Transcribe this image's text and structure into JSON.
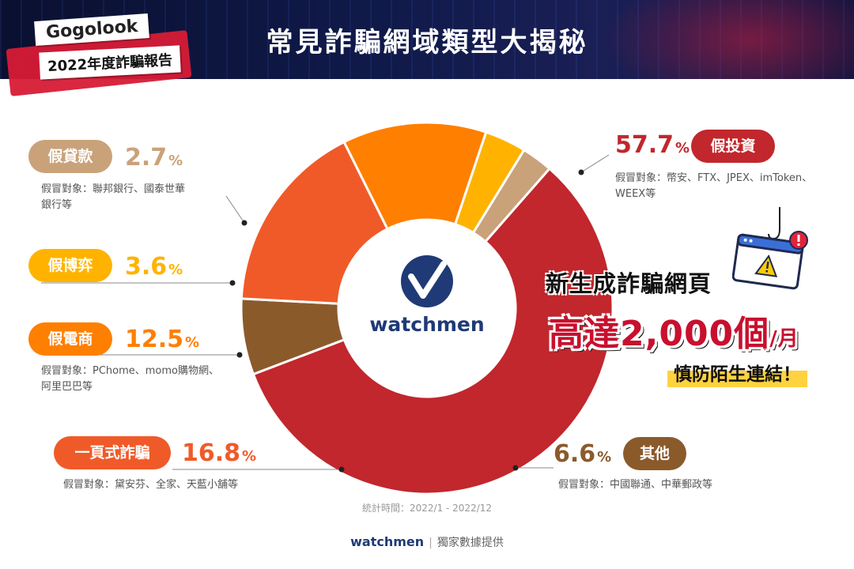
{
  "header": {
    "brand": "Gogolook",
    "report": "2022年度詐騙報告",
    "title": "常見詐騙網域類型大揭秘"
  },
  "chart_data": {
    "type": "pie",
    "style": "donut",
    "center_label": "watchmen",
    "slices": [
      {
        "key": "invest",
        "label": "假投資",
        "value": 57.7,
        "color": "#c1272d",
        "desc": "假冒對象：幣安、FTX、JPEX、imToken、WEEX等"
      },
      {
        "key": "other",
        "label": "其他",
        "value": 6.6,
        "color": "#8b5a2b",
        "desc": "假冒對象：中國聯通、中華郵政等"
      },
      {
        "key": "onepage",
        "label": "一頁式詐騙",
        "value": 16.8,
        "color": "#f05a28",
        "desc": "假冒對象：黛安芬、全家、天藍小舖等"
      },
      {
        "key": "ecommerce",
        "label": "假電商",
        "value": 12.5,
        "color": "#ff7f00",
        "desc": "假冒對象：PChome、momo購物網、阿里巴巴等"
      },
      {
        "key": "gamble",
        "label": "假博弈",
        "value": 3.6,
        "color": "#ffb300",
        "desc": ""
      },
      {
        "key": "loan",
        "label": "假貸款",
        "value": 2.7,
        "color": "#c9a27a",
        "desc": "假冒對象：聯邦銀行、國泰世華銀行等"
      }
    ]
  },
  "labels": {
    "invest": {
      "pill": "假投資",
      "pct": "57.7",
      "desc_1": "假冒對象：幣安、FTX、JPEX、imToken、",
      "desc_2": "WEEX等"
    },
    "other": {
      "pill": "其他",
      "pct": "6.6",
      "desc_1": "假冒對象：中國聯通、中華郵政等"
    },
    "onepage": {
      "pill": "一頁式詐騙",
      "pct": "16.8",
      "desc_1": "假冒對象：黛安芬、全家、天藍小舖等"
    },
    "ecommerce": {
      "pill": "假電商",
      "pct": "12.5",
      "desc_1": "假冒對象：PChome、momo購物網、",
      "desc_2": "阿里巴巴等"
    },
    "gamble": {
      "pill": "假博弈",
      "pct": "3.6"
    },
    "loan": {
      "pill": "假貸款",
      "pct": "2.7",
      "desc_1": "假冒對象：聯邦銀行、國泰世華",
      "desc_2": "銀行等"
    },
    "percent_sign": "%"
  },
  "promo": {
    "line1": "新生成詐騙網頁",
    "line2": "高達2,000個",
    "unit": "/月",
    "line3": "慎防陌生連結！"
  },
  "footnote": "統計時間：2022/1 - 2022/12",
  "footer": {
    "brand": "watchmen",
    "separator": "|",
    "text": "獨家數據提供"
  },
  "colors": {
    "header_bg": "#0b1440",
    "brand_red": "#d71b36",
    "watchmen_blue": "#1f3a76"
  }
}
